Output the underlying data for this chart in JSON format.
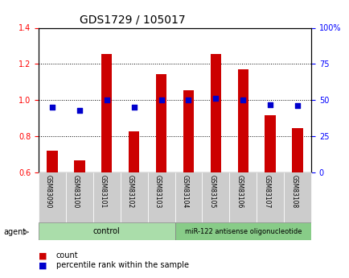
{
  "title": "GDS1729 / 105017",
  "samples": [
    "GSM83090",
    "GSM83100",
    "GSM83101",
    "GSM83102",
    "GSM83103",
    "GSM83104",
    "GSM83105",
    "GSM83106",
    "GSM83107",
    "GSM83108"
  ],
  "count_values": [
    0.72,
    0.665,
    1.255,
    0.825,
    1.145,
    1.055,
    1.255,
    1.17,
    0.915,
    0.845
  ],
  "percentile_values": [
    45,
    43,
    50,
    45,
    50,
    50,
    51,
    50,
    47,
    46
  ],
  "ylim_left": [
    0.6,
    1.4
  ],
  "ylim_right": [
    0,
    100
  ],
  "yticks_left": [
    0.6,
    0.8,
    1.0,
    1.2,
    1.4
  ],
  "yticks_right": [
    0,
    25,
    50,
    75,
    100
  ],
  "ytick_labels_right": [
    "0",
    "25",
    "50",
    "75",
    "100%"
  ],
  "control_count": 5,
  "treatment_count": 5,
  "control_label": "control",
  "treatment_label": "miR-122 antisense oligonucleotide",
  "agent_label": "agent",
  "legend_count_label": "count",
  "legend_percentile_label": "percentile rank within the sample",
  "bar_color": "#cc0000",
  "dot_color": "#0000cc",
  "control_bg": "#aaddaa",
  "treatment_bg": "#88cc88",
  "xticklabel_bg": "#cccccc",
  "grid_color": "#000000",
  "bar_width": 0.4,
  "baseline": 0.6
}
